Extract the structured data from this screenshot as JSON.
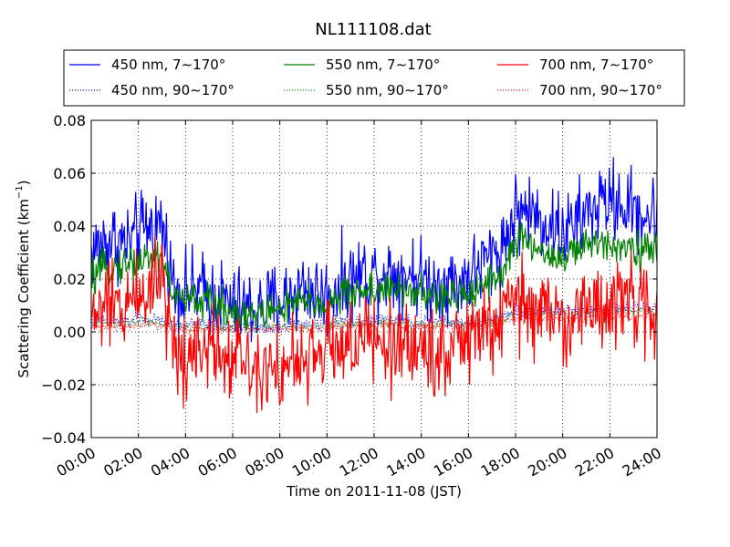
{
  "chart_data": {
    "type": "line",
    "title": "NL111108.dat",
    "xlabel": "Time on 2011-11-08 (JST)",
    "ylabel": "Scattering Coefficient (km",
    "ylabel_sup": "−1",
    "ylabel_close": ")",
    "xlim": [
      0,
      24
    ],
    "ylim": [
      -0.04,
      0.08
    ],
    "x_ticks": [
      0,
      2,
      4,
      6,
      8,
      10,
      12,
      14,
      16,
      18,
      20,
      22,
      24
    ],
    "x_tick_labels": [
      "00:00",
      "02:00",
      "04:00",
      "06:00",
      "08:00",
      "10:00",
      "12:00",
      "14:00",
      "16:00",
      "18:00",
      "20:00",
      "22:00",
      "24:00"
    ],
    "y_ticks": [
      -0.04,
      -0.02,
      0.0,
      0.02,
      0.04,
      0.06,
      0.08
    ],
    "y_tick_labels": [
      "−0.04",
      "−0.02",
      "0.00",
      "0.02",
      "0.04",
      "0.06",
      "0.08"
    ],
    "grid": true,
    "legend_position": "top",
    "x": [
      0,
      0.5,
      1,
      1.5,
      2,
      2.5,
      3,
      3.5,
      4,
      4.5,
      5,
      5.5,
      6,
      6.5,
      7,
      7.5,
      8,
      8.5,
      9,
      9.5,
      10,
      10.5,
      11,
      11.5,
      12,
      12.5,
      13,
      13.5,
      14,
      14.5,
      15,
      15.5,
      16,
      16.5,
      17,
      17.5,
      18,
      18.5,
      19,
      19.5,
      20,
      20.5,
      21,
      21.5,
      22,
      22.5,
      23,
      23.5,
      24
    ],
    "series": [
      {
        "name": "450 nm, 7∼170°",
        "color": "#0000ff",
        "style": "solid",
        "values": [
          0.03,
          0.034,
          0.035,
          0.033,
          0.037,
          0.04,
          0.041,
          0.017,
          0.015,
          0.016,
          0.014,
          0.013,
          0.01,
          0.009,
          0.008,
          0.01,
          0.012,
          0.014,
          0.017,
          0.015,
          0.013,
          0.018,
          0.02,
          0.022,
          0.022,
          0.023,
          0.022,
          0.023,
          0.02,
          0.018,
          0.019,
          0.018,
          0.021,
          0.025,
          0.029,
          0.033,
          0.045,
          0.046,
          0.043,
          0.04,
          0.038,
          0.04,
          0.045,
          0.048,
          0.05,
          0.048,
          0.046,
          0.044,
          0.043
        ]
      },
      {
        "name": "450 nm, 90∼170°",
        "color": "#0000ff",
        "style": "dotted",
        "values": [
          0.004,
          0.004,
          0.004,
          0.004,
          0.005,
          0.005,
          0.004,
          0.003,
          0.003,
          0.003,
          0.003,
          0.002,
          0.002,
          0.002,
          0.002,
          0.002,
          0.002,
          0.003,
          0.003,
          0.003,
          0.003,
          0.004,
          0.004,
          0.004,
          0.004,
          0.005,
          0.004,
          0.004,
          0.004,
          0.004,
          0.004,
          0.003,
          0.004,
          0.004,
          0.005,
          0.006,
          0.008,
          0.008,
          0.008,
          0.008,
          0.008,
          0.008,
          0.008,
          0.009,
          0.009,
          0.009,
          0.009,
          0.009,
          0.009
        ]
      },
      {
        "name": "550 nm, 7∼170°",
        "color": "#008000",
        "style": "solid",
        "values": [
          0.02,
          0.023,
          0.025,
          0.026,
          0.027,
          0.028,
          0.029,
          0.013,
          0.012,
          0.012,
          0.011,
          0.01,
          0.008,
          0.007,
          0.006,
          0.008,
          0.009,
          0.01,
          0.011,
          0.011,
          0.01,
          0.013,
          0.015,
          0.016,
          0.016,
          0.016,
          0.015,
          0.016,
          0.014,
          0.013,
          0.013,
          0.013,
          0.015,
          0.018,
          0.02,
          0.023,
          0.034,
          0.034,
          0.031,
          0.029,
          0.028,
          0.03,
          0.032,
          0.034,
          0.034,
          0.033,
          0.032,
          0.031,
          0.03
        ]
      },
      {
        "name": "550 nm, 90∼170°",
        "color": "#008000",
        "style": "dotted",
        "values": [
          0.003,
          0.003,
          0.003,
          0.003,
          0.004,
          0.004,
          0.003,
          0.002,
          0.002,
          0.002,
          0.002,
          0.002,
          0.002,
          0.002,
          0.001,
          0.002,
          0.002,
          0.002,
          0.002,
          0.002,
          0.002,
          0.003,
          0.003,
          0.003,
          0.003,
          0.004,
          0.003,
          0.003,
          0.003,
          0.003,
          0.003,
          0.003,
          0.003,
          0.003,
          0.004,
          0.005,
          0.007,
          0.007,
          0.007,
          0.007,
          0.007,
          0.007,
          0.007,
          0.008,
          0.008,
          0.008,
          0.008,
          0.008,
          0.008
        ]
      },
      {
        "name": "700 nm, 7∼170°",
        "color": "#ff0000",
        "style": "solid",
        "values": [
          0.005,
          0.01,
          0.008,
          0.012,
          0.014,
          0.018,
          0.024,
          -0.008,
          -0.01,
          -0.002,
          -0.005,
          -0.007,
          -0.008,
          -0.01,
          -0.012,
          -0.01,
          -0.015,
          -0.012,
          -0.014,
          -0.008,
          -0.006,
          -0.004,
          -0.005,
          -0.003,
          -0.004,
          -0.006,
          -0.005,
          -0.004,
          -0.007,
          -0.008,
          -0.006,
          -0.005,
          -0.003,
          0.0,
          0.002,
          0.004,
          0.012,
          0.01,
          0.008,
          0.006,
          0.004,
          0.006,
          0.008,
          0.01,
          0.012,
          0.011,
          0.01,
          0.008,
          0.006
        ]
      },
      {
        "name": "700 nm, 90∼170°",
        "color": "#ff0000",
        "style": "dotted",
        "values": [
          0.002,
          0.002,
          0.002,
          0.002,
          0.003,
          0.003,
          0.002,
          0.001,
          0.001,
          0.001,
          0.001,
          0.001,
          0.001,
          0.001,
          0.001,
          0.001,
          0.001,
          0.001,
          0.001,
          0.001,
          0.001,
          0.002,
          0.002,
          0.002,
          0.002,
          0.003,
          0.002,
          0.002,
          0.002,
          0.002,
          0.002,
          0.002,
          0.002,
          0.002,
          0.003,
          0.004,
          0.005,
          0.005,
          0.005,
          0.005,
          0.005,
          0.005,
          0.005,
          0.006,
          0.006,
          0.006,
          0.006,
          0.006,
          0.006
        ]
      }
    ]
  }
}
